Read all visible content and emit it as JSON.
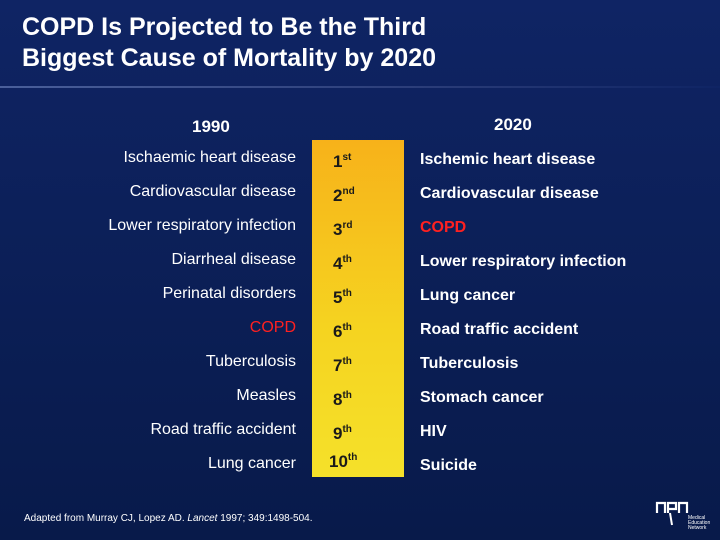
{
  "title_line1": "COPD Is Projected to Be the Third",
  "title_line2": "Biggest Cause of Mortality by 2020",
  "col_1990": "1990",
  "col_2020": "2020",
  "rows": [
    {
      "left": "Ischaemic heart disease",
      "rank_num": "1",
      "rank_suffix": "st",
      "right": "Ischemic heart disease"
    },
    {
      "left": "Cardiovascular disease",
      "rank_num": "2",
      "rank_suffix": "nd",
      "right": "Cardiovascular disease"
    },
    {
      "left": "Lower respiratory infection",
      "rank_num": "3",
      "rank_suffix": "rd",
      "right": "COPD"
    },
    {
      "left": "Diarrheal disease",
      "rank_num": "4",
      "rank_suffix": "th",
      "right": "Lower respiratory infection"
    },
    {
      "left": "Perinatal disorders",
      "rank_num": "5",
      "rank_suffix": "th",
      "right": "Lung cancer"
    },
    {
      "left": "COPD",
      "rank_num": "6",
      "rank_suffix": "th",
      "right": "Road traffic accident"
    },
    {
      "left": "Tuberculosis",
      "rank_num": "7",
      "rank_suffix": "th",
      "right": "Tuberculosis"
    },
    {
      "left": "Measles",
      "rank_num": "8",
      "rank_suffix": "th",
      "right": "Stomach cancer"
    },
    {
      "left": "Road traffic accident",
      "rank_num": "9",
      "rank_suffix": "th",
      "right": "HIV"
    },
    {
      "left": "Lung cancer",
      "rank_num": "10",
      "rank_suffix": "th",
      "right": "Suicide"
    }
  ],
  "footnote_pre": "Adapted from Murray CJ, Lopez AD. ",
  "footnote_journal": "Lancet",
  "footnote_post": " 1997; 349:1498-504.",
  "logo_text": [
    "Medical",
    "Education",
    "Network"
  ],
  "colors": {
    "background": "#0f2464",
    "rank_band": "#f5d320",
    "highlight": "#ff2020"
  }
}
